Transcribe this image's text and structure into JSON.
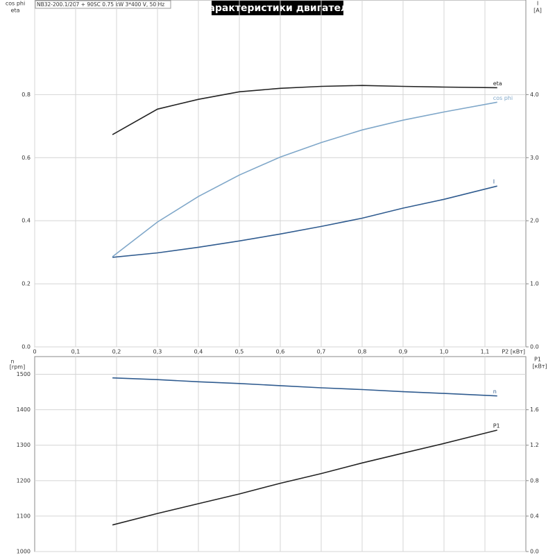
{
  "chart_data": [
    {
      "type": "line",
      "title": "Характеристики двигателя",
      "subtitle": "NB32-200.1/207 + 90SC  0.75 kW  3*400 V, 50 Hz",
      "x_label": "P2 [кВт]",
      "y_label": [
        "cos phi",
        "eta"
      ],
      "y2_label": [
        "I",
        "[A]"
      ],
      "x": [
        0.19,
        0.3,
        0.4,
        0.5,
        0.6,
        0.7,
        0.8,
        0.9,
        1.0,
        1.13
      ],
      "series": [
        {
          "name": "eta",
          "color": "#222222",
          "values": [
            0.673,
            0.754,
            0.785,
            0.809,
            0.82,
            0.826,
            0.829,
            0.826,
            0.824,
            0.822
          ]
        },
        {
          "name": "cos phi",
          "color": "#7fa7c9",
          "values": [
            0.286,
            0.396,
            0.477,
            0.545,
            0.602,
            0.648,
            0.688,
            0.719,
            0.745,
            0.776
          ]
        },
        {
          "name": "I",
          "color": "#2f5b8f",
          "axis": "y2",
          "values": [
            1.42,
            1.49,
            1.58,
            1.68,
            1.79,
            1.91,
            2.04,
            2.2,
            2.34,
            2.55
          ]
        }
      ],
      "xlim": [
        0,
        1.2
      ],
      "xticks": [
        0,
        {
          "value": 0.1,
          "label": "0,1"
        },
        {
          "value": 0.2,
          "label": "0,2"
        },
        {
          "value": 0.3,
          "label": "0,3"
        },
        {
          "value": 0.4,
          "label": "0,4"
        },
        {
          "value": 0.5,
          "label": "0,5"
        },
        {
          "value": 0.6,
          "label": "0,6"
        },
        {
          "value": 0.7,
          "label": "0,7"
        },
        {
          "value": 0.8,
          "label": "0,8"
        },
        {
          "value": 0.9,
          "label": "0,9"
        },
        {
          "value": 1.0,
          "label": "1,0"
        },
        {
          "value": 1.1,
          "label": "1,1"
        }
      ],
      "ylim": [
        0,
        1.1
      ],
      "yticks": [
        {
          "value": 0,
          "label": "0.0"
        },
        0.2,
        0.4,
        0.6,
        0.8
      ],
      "y2lim": [
        0,
        5.5
      ],
      "y2ticks": [
        {
          "value": 0,
          "label": "0.0"
        },
        {
          "value": 1,
          "label": "1.0"
        },
        {
          "value": 2,
          "label": "2.0"
        },
        {
          "value": 3,
          "label": "3.0"
        },
        {
          "value": 4,
          "label": "4.0"
        }
      ],
      "grid": true
    },
    {
      "type": "line",
      "y_label": [
        "n",
        "[rpm]"
      ],
      "y2_label": [
        "P1",
        "[кВт]"
      ],
      "x": [
        0.19,
        0.3,
        0.4,
        0.5,
        0.6,
        0.7,
        0.8,
        0.9,
        1.0,
        1.13
      ],
      "series": [
        {
          "name": "n",
          "color": "#2f5b8f",
          "values": [
            1490,
            1485,
            1479,
            1474,
            1468,
            1462,
            1457,
            1451,
            1446,
            1439
          ]
        },
        {
          "name": "P1",
          "color": "#222222",
          "axis": "y2",
          "values": [
            0.3,
            0.43,
            0.54,
            0.65,
            0.77,
            0.88,
            1.0,
            1.11,
            1.22,
            1.37
          ]
        }
      ],
      "xlim": [
        0,
        1.2
      ],
      "xticks": [
        0.1,
        0.2,
        0.3,
        0.4,
        0.5,
        0.6,
        0.7,
        0.8,
        0.9,
        1.0,
        1.1
      ],
      "ylim": [
        1000,
        1550
      ],
      "yticks": [
        1000,
        1100,
        1200,
        1300,
        1400,
        1500
      ],
      "y2lim": [
        0,
        2.2
      ],
      "y2ticks": [
        {
          "value": 0,
          "label": "0.0"
        },
        0.4,
        0.8,
        1.2,
        1.6
      ],
      "grid": true
    }
  ]
}
